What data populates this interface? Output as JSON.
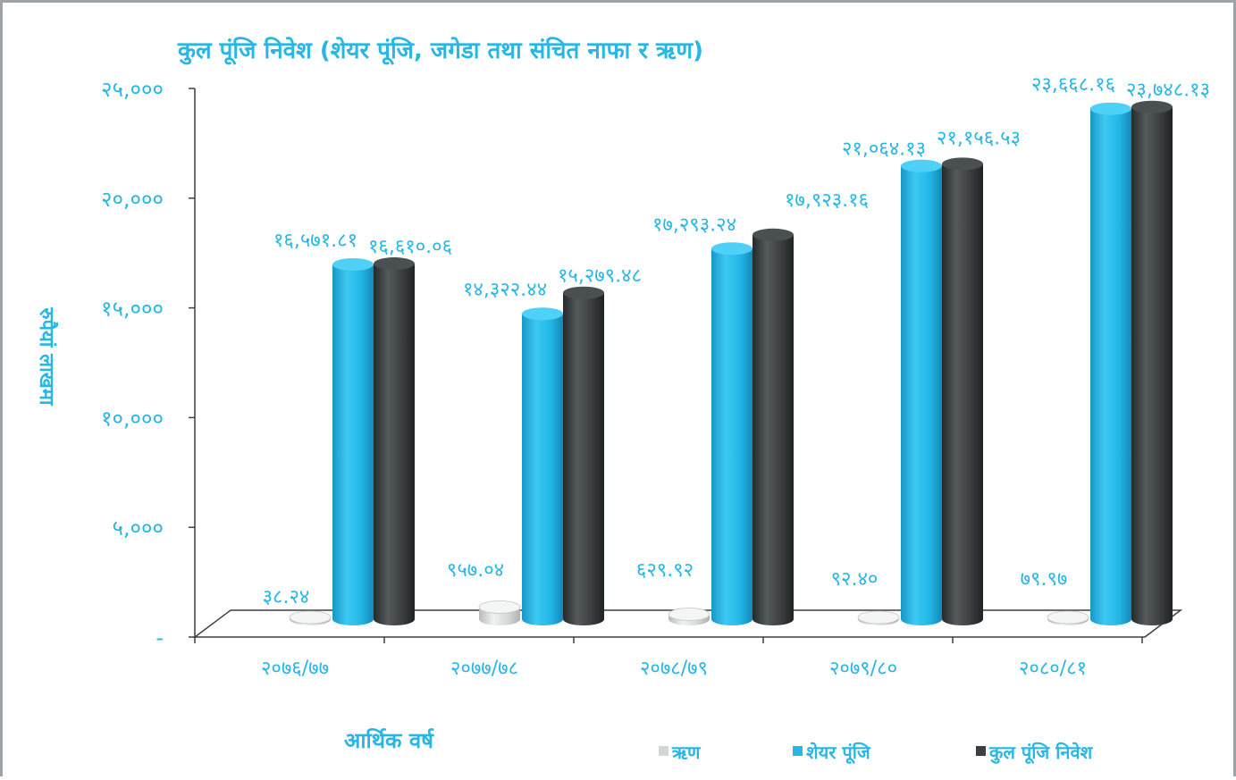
{
  "chart_data": {
    "type": "bar",
    "title": "कुल पूंजि निवेश (शेयर पूंजि, जगेडा तथा संचित नाफा र ऋण)",
    "xlabel": "आर्थिक वर्ष",
    "ylabel": "रुपैयां लाखमा",
    "ylim": [
      0,
      25000
    ],
    "y_ticks": [
      "-",
      "५,०००",
      "१०,०००",
      "१५,०००",
      "२०,०००",
      "२५,०००"
    ],
    "categories": [
      "२०७६/७७",
      "२०७७/७८",
      "२०७८/७९",
      "२०७९/८०",
      "२०८०/८१"
    ],
    "series": [
      {
        "name": "ऋण",
        "color": "#d4d6d6",
        "values": [
          38.24,
          957.04,
          629.92,
          92.4,
          79.97
        ],
        "labels": [
          "३८.२४",
          "९५७.०४",
          "६२९.९२",
          "९२.४०",
          "७९.९७"
        ]
      },
      {
        "name": "शेयर पूंजि",
        "color": "#27b8e6",
        "values": [
          16571.81,
          14322.44,
          17293.24,
          21064.13,
          23668.16
        ],
        "labels": [
          "१६,५७१.८१",
          "१४,३२२.४४",
          "१७,२९३.२४",
          "२१,०६४.१३",
          "२३,६६८.१६"
        ]
      },
      {
        "name": "कुल पूंजि निवेश",
        "color": "#3b3f41",
        "values": [
          16610.06,
          15279.48,
          17923.16,
          21156.53,
          23748.13
        ],
        "labels": [
          "१६,६१०.०६",
          "१५,२७९.४८",
          "१७,९२३.१६",
          "२१,१५६.५३",
          "२३,७४८.१३"
        ]
      }
    ],
    "legend_position": "bottom-right",
    "grid": false
  }
}
